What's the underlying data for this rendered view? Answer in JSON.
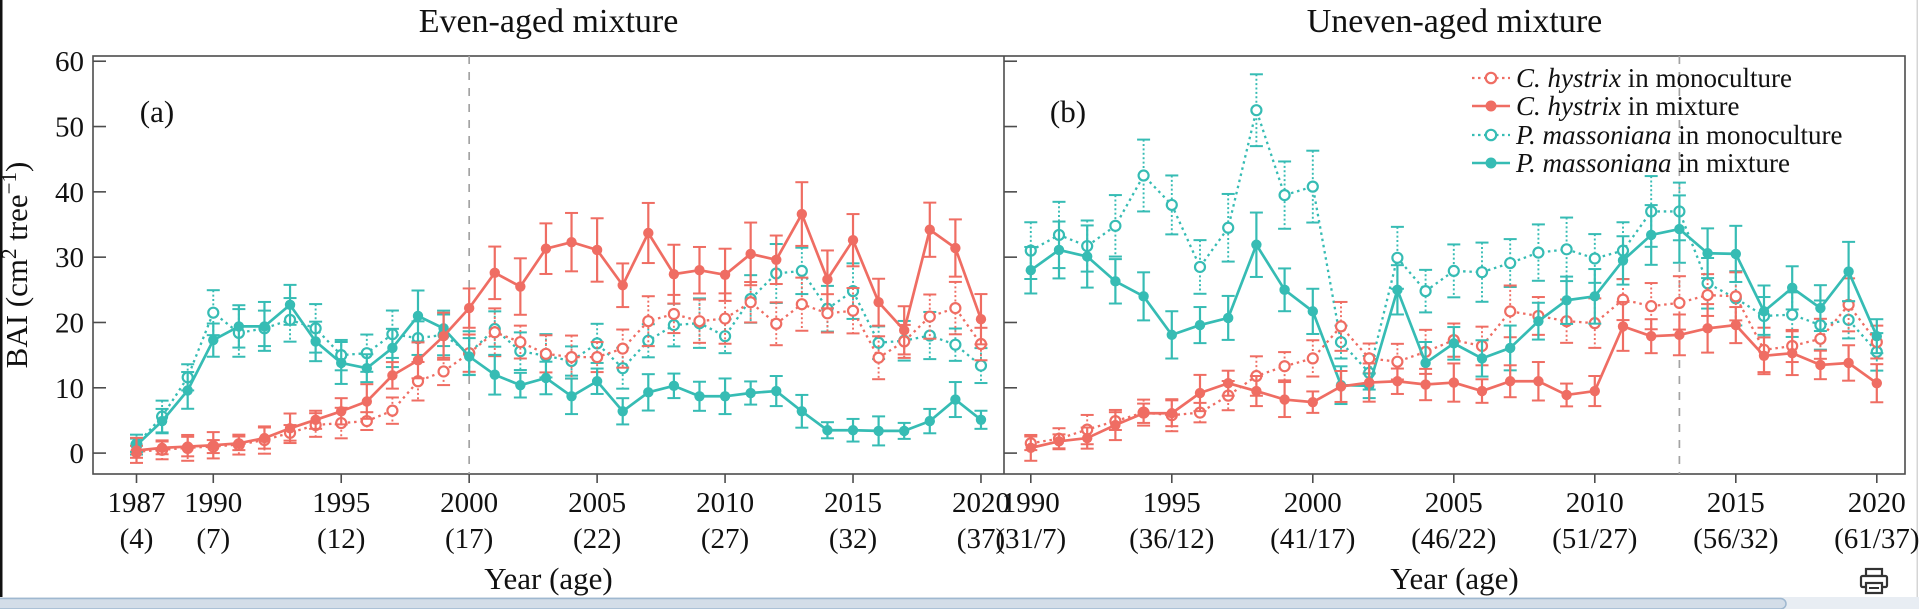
{
  "icons": {
    "bottom_right": "printer-icon"
  },
  "chart_data": {
    "type": "line",
    "xlabel": "Year (age)",
    "ylabel_parts": [
      {
        "t": "BAI  (cm"
      },
      {
        "t": "2",
        "sup": true
      },
      {
        "t": " tree"
      },
      {
        "t": "−1",
        "sup": true
      },
      {
        "t": ")"
      }
    ],
    "ylim": [
      0,
      60
    ],
    "yticks": [
      0,
      10,
      20,
      30,
      40,
      50,
      60
    ],
    "grid": false,
    "legend_position": "top-right inside panel b",
    "colors": {
      "c_hystrix": "#ef6d63",
      "p_massoniana": "#36bcb4",
      "dashed_guide": "#a3a3a3",
      "axis": "#4d4d4d",
      "text": "#111111"
    },
    "error_bars": {
      "approx": true,
      "base": 0.9,
      "per_value": 0.095,
      "max": 5.5
    },
    "series_meta": [
      {
        "key": "ch_mono",
        "species": "C. hystrix",
        "rest": " in monoculture",
        "color_key": "c_hystrix",
        "filled": false,
        "dotted": true
      },
      {
        "key": "ch_mix",
        "species": "C. hystrix",
        "rest": " in mixture",
        "color_key": "c_hystrix",
        "filled": true,
        "dotted": false
      },
      {
        "key": "pm_mono",
        "species": "P. massoniana",
        "rest": " in monoculture",
        "color_key": "p_massoniana",
        "filled": false,
        "dotted": true
      },
      {
        "key": "pm_mix",
        "species": "P. massoniana",
        "rest": " in mixture",
        "color_key": "p_massoniana",
        "filled": true,
        "dotted": false
      }
    ],
    "panels": [
      {
        "label": "(a)",
        "title": "Even-aged mixture",
        "dashed_year": 2000,
        "years_start": 1987,
        "years_end": 2020,
        "xlim": [
          1985.3,
          2020.9
        ],
        "xticks": [
          {
            "year": 1987,
            "age": "(4)"
          },
          {
            "year": 1990,
            "age": "(7)"
          },
          {
            "year": 1995,
            "age": "(12)"
          },
          {
            "year": 2000,
            "age": "(17)"
          },
          {
            "year": 2005,
            "age": "(22)"
          },
          {
            "year": 2010,
            "age": "(27)"
          },
          {
            "year": 2015,
            "age": "(32)"
          },
          {
            "year": 2020,
            "age": "(37)"
          }
        ],
        "series": {
          "ch_mono": [
            0.2,
            0.5,
            0.8,
            1.0,
            1.3,
            2.0,
            3.1,
            4.3,
            4.6,
            4.9,
            6.5,
            11.0,
            12.5,
            15.3,
            18.5,
            17.0,
            15.2,
            14.7,
            14.7,
            16.0,
            20.2,
            21.3,
            20.2,
            20.6,
            23.1,
            19.8,
            22.8,
            21.4,
            21.8,
            14.6,
            17.1,
            20.9,
            22.2,
            16.7
          ],
          "ch_mix": [
            0.4,
            0.8,
            1.0,
            1.2,
            1.5,
            2.3,
            3.8,
            5.1,
            6.4,
            7.9,
            11.9,
            14.2,
            17.9,
            22.2,
            27.6,
            25.5,
            31.3,
            32.3,
            31.1,
            25.7,
            33.7,
            27.4,
            28.0,
            27.3,
            30.5,
            29.6,
            36.6,
            26.6,
            32.6,
            23.1,
            18.8,
            34.2,
            31.4,
            20.5
          ],
          "pm_mono": [
            1.3,
            5.6,
            11.6,
            21.5,
            18.4,
            19.1,
            20.4,
            19.1,
            15.0,
            15.3,
            18.2,
            17.6,
            18.1,
            15.3,
            19.0,
            15.6,
            14.9,
            14.1,
            16.8,
            13.0,
            17.2,
            19.6,
            19.9,
            17.9,
            23.6,
            27.5,
            27.9,
            22.1,
            24.8,
            16.9,
            17.2,
            18.0,
            16.6,
            13.4
          ],
          "pm_mix": [
            1.2,
            4.9,
            9.6,
            17.3,
            19.4,
            19.4,
            22.7,
            17.1,
            13.8,
            13.0,
            16.1,
            21.0,
            19.1,
            14.8,
            12.0,
            10.4,
            11.5,
            8.7,
            11.0,
            6.4,
            9.3,
            10.3,
            8.7,
            8.7,
            9.2,
            9.5,
            6.4,
            3.5,
            3.5,
            3.4,
            3.4,
            4.9,
            8.2,
            5.1
          ]
        }
      },
      {
        "label": "(b)",
        "title": "Uneven-aged mixture",
        "dashed_year": 2013,
        "years_start": 1990,
        "years_end": 2020,
        "xlim": [
          1989.05,
          2021.0
        ],
        "xticks": [
          {
            "year": 1990,
            "age": "(31/7)"
          },
          {
            "year": 1995,
            "age": "(36/12)"
          },
          {
            "year": 2000,
            "age": "(41/17)"
          },
          {
            "year": 2005,
            "age": "(46/22)"
          },
          {
            "year": 2010,
            "age": "(51/27)"
          },
          {
            "year": 2015,
            "age": "(56/32)"
          },
          {
            "year": 2020,
            "age": "(61/37)"
          }
        ],
        "series": {
          "ch_mono": [
            1.5,
            2.2,
            3.6,
            4.9,
            6.2,
            5.8,
            6.2,
            8.8,
            11.8,
            13.3,
            14.5,
            19.4,
            14.5,
            14.0,
            15.5,
            17.3,
            16.4,
            21.7,
            21.0,
            20.2,
            19.9,
            23.5,
            22.5,
            23.0,
            24.2,
            24.0,
            15.8,
            16.4,
            17.5,
            22.7,
            17.0
          ],
          "ch_mix": [
            0.8,
            1.8,
            2.3,
            4.3,
            6.1,
            6.1,
            9.2,
            10.7,
            9.5,
            8.2,
            7.8,
            10.2,
            10.8,
            11.0,
            10.5,
            10.8,
            9.5,
            11.0,
            11.0,
            8.9,
            9.5,
            19.4,
            17.9,
            18.1,
            19.1,
            19.6,
            14.9,
            15.3,
            13.5,
            13.8,
            10.7
          ],
          "pm_mono": [
            31.0,
            33.4,
            31.7,
            34.8,
            42.5,
            38.0,
            28.5,
            34.5,
            52.5,
            39.5,
            40.8,
            17.0,
            12.3,
            29.9,
            24.8,
            27.9,
            27.7,
            29.1,
            30.7,
            31.2,
            29.8,
            31.0,
            37.0,
            37.0,
            26.0,
            23.7,
            21.0,
            21.2,
            19.6,
            20.4,
            15.5
          ],
          "pm_mix": [
            28.0,
            31.1,
            30.1,
            26.3,
            24.0,
            18.1,
            19.6,
            20.7,
            31.9,
            25.0,
            21.7,
            10.4,
            10.3,
            25.0,
            13.8,
            16.8,
            14.5,
            16.1,
            20.2,
            23.4,
            24.0,
            29.5,
            33.4,
            34.3,
            30.6,
            30.5,
            21.7,
            25.3,
            22.2,
            27.8,
            17.9
          ]
        }
      }
    ]
  }
}
